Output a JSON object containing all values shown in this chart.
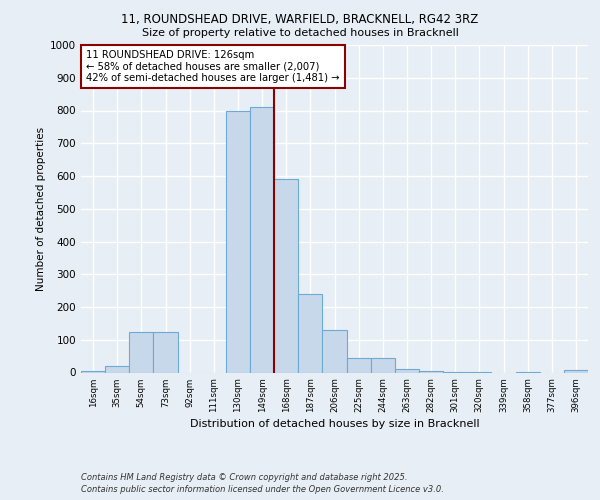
{
  "title_line1": "11, ROUNDSHEAD DRIVE, WARFIELD, BRACKNELL, RG42 3RZ",
  "title_line2": "Size of property relative to detached houses in Bracknell",
  "xlabel": "Distribution of detached houses by size in Bracknell",
  "ylabel": "Number of detached properties",
  "categories": [
    "16sqm",
    "35sqm",
    "54sqm",
    "73sqm",
    "92sqm",
    "111sqm",
    "130sqm",
    "149sqm",
    "168sqm",
    "187sqm",
    "206sqm",
    "225sqm",
    "244sqm",
    "263sqm",
    "282sqm",
    "301sqm",
    "320sqm",
    "339sqm",
    "358sqm",
    "377sqm",
    "396sqm"
  ],
  "values": [
    5,
    20,
    125,
    125,
    0,
    0,
    800,
    810,
    590,
    240,
    130,
    45,
    45,
    10,
    5,
    3,
    3,
    0,
    3,
    0,
    8
  ],
  "bar_color": "#c8d8eb",
  "bar_edge_color": "#6aaad4",
  "vline_x_index": 7.5,
  "vline_color": "#8b0000",
  "annotation_text": "11 ROUNDSHEAD DRIVE: 126sqm\n← 58% of detached houses are smaller (2,007)\n42% of semi-detached houses are larger (1,481) →",
  "annotation_box_color": "white",
  "annotation_box_edge_color": "#8b0000",
  "ylim": [
    0,
    1000
  ],
  "yticks": [
    0,
    100,
    200,
    300,
    400,
    500,
    600,
    700,
    800,
    900,
    1000
  ],
  "background_color": "#e8eef5",
  "grid_color": "white",
  "footer_line1": "Contains HM Land Registry data © Crown copyright and database right 2025.",
  "footer_line2": "Contains public sector information licensed under the Open Government Licence v3.0."
}
